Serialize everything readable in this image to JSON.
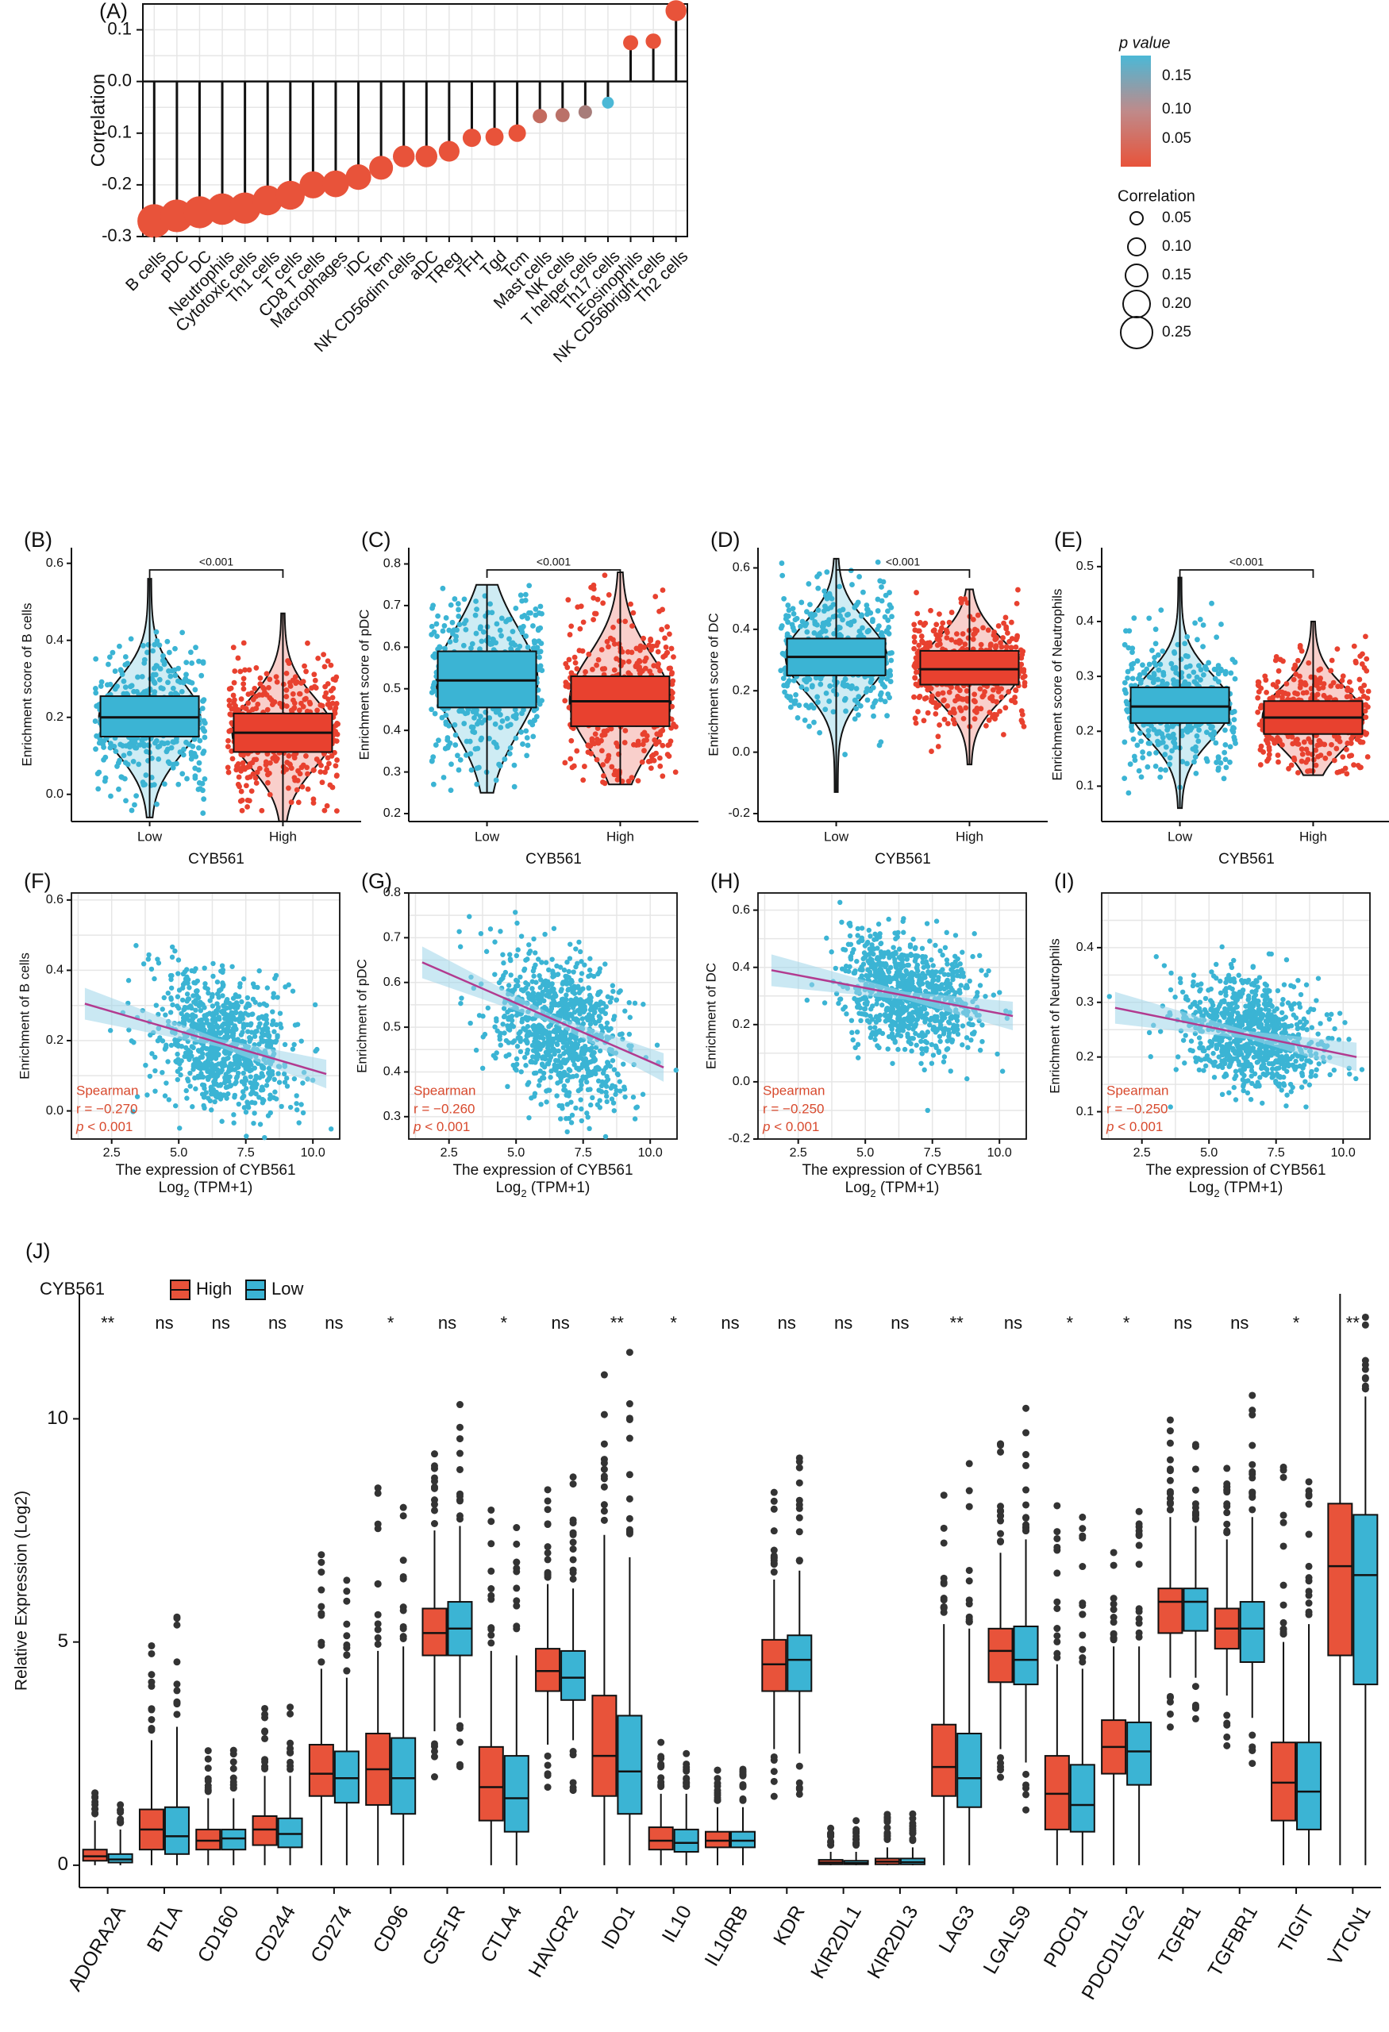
{
  "chart_data": [
    {
      "panel": "(A)",
      "type": "lollipop",
      "ylabel": "Correlation",
      "ylim": [
        -0.3,
        0.15
      ],
      "yticks": [
        "-0.3",
        "-0.2",
        "-0.1",
        "0.0",
        "0.1"
      ],
      "categories": [
        "B cells",
        "pDC",
        "DC",
        "Neutrophils",
        "Cytotoxic cells",
        "Th1 cells",
        "T cells",
        "CD8 T cells",
        "Macrophages",
        "iDC",
        "Tem",
        "NK CD56dim cells",
        "aDC",
        "TReg",
        "TFH",
        "Tgd",
        "Tcm",
        "Mast cells",
        "NK cells",
        "T helper cells",
        "Th17 cells",
        "Eosinophils",
        "NK CD56bright cells",
        "Th2 cells"
      ],
      "values": [
        -0.27,
        -0.26,
        -0.253,
        -0.247,
        -0.245,
        -0.23,
        -0.22,
        -0.2,
        -0.198,
        -0.185,
        -0.167,
        -0.145,
        -0.145,
        -0.135,
        -0.109,
        -0.107,
        -0.1,
        -0.067,
        -0.065,
        -0.059,
        -0.041,
        0.075,
        0.078,
        0.137
      ],
      "p_values": [
        0.001,
        0.001,
        0.001,
        0.001,
        0.001,
        0.001,
        0.001,
        0.001,
        0.001,
        0.001,
        0.001,
        0.001,
        0.001,
        0.001,
        0.005,
        0.005,
        0.01,
        0.05,
        0.06,
        0.08,
        0.18,
        0.01,
        0.01,
        0.001
      ],
      "legend_p": {
        "title": "p value",
        "ticks": [
          "0.15",
          "0.10",
          "0.05"
        ],
        "low_color": "#E8533A",
        "high_color": "#4BB8D6"
      },
      "legend_size": {
        "title": "Correlation",
        "ticks": [
          "0.05",
          "0.10",
          "0.15",
          "0.20",
          "0.25"
        ]
      }
    },
    {
      "type": "violin-box",
      "xlabel": "CYB561",
      "groups": [
        "Low",
        "High"
      ],
      "colors": [
        "#3BB4D4",
        "#E8412F"
      ],
      "panels": [
        {
          "panel": "(B)",
          "ylabel": "Enrichment score of B cells",
          "ylim": [
            -0.05,
            0.62
          ],
          "yticks": [
            "0.0",
            "0.2",
            "0.4",
            "0.6"
          ],
          "low": {
            "min": -0.06,
            "q1": 0.15,
            "median": 0.2,
            "q3": 0.255,
            "max": 0.56
          },
          "high": {
            "min": -0.07,
            "q1": 0.11,
            "median": 0.16,
            "q3": 0.21,
            "max": 0.47
          },
          "sig": "<0.001"
        },
        {
          "panel": "(C)",
          "ylabel": "Enrichment score of pDC",
          "ylim": [
            0.2,
            0.82
          ],
          "yticks": [
            "0.2",
            "0.3",
            "0.4",
            "0.5",
            "0.6",
            "0.7",
            "0.8"
          ],
          "low": {
            "min": 0.25,
            "q1": 0.455,
            "median": 0.52,
            "q3": 0.59,
            "max": 0.75
          },
          "high": {
            "min": 0.27,
            "q1": 0.41,
            "median": 0.47,
            "q3": 0.53,
            "max": 0.78
          },
          "sig": "<0.001"
        },
        {
          "panel": "(D)",
          "ylabel": "Enrichment score of DC",
          "ylim": [
            -0.2,
            0.64
          ],
          "yticks": [
            "-0.2",
            "0.0",
            "0.2",
            "0.4",
            "0.6"
          ],
          "low": {
            "min": -0.13,
            "q1": 0.25,
            "median": 0.31,
            "q3": 0.37,
            "max": 0.63
          },
          "high": {
            "min": -0.04,
            "q1": 0.22,
            "median": 0.27,
            "q3": 0.33,
            "max": 0.53
          },
          "sig": "<0.001"
        },
        {
          "panel": "(E)",
          "ylabel": "Enrichment score of Neutrophils",
          "ylim": [
            0.05,
            0.52
          ],
          "yticks": [
            "0.1",
            "0.2",
            "0.3",
            "0.4",
            "0.5"
          ],
          "low": {
            "min": 0.06,
            "q1": 0.215,
            "median": 0.245,
            "q3": 0.28,
            "max": 0.48
          },
          "high": {
            "min": 0.12,
            "q1": 0.195,
            "median": 0.225,
            "q3": 0.255,
            "max": 0.4
          },
          "sig": "<0.001"
        }
      ]
    },
    {
      "type": "scatter",
      "xlabel": "The expression of CYB561",
      "xlabel2_base": "Log",
      "xlabel2_sub": "2",
      "xlabel2_rest": " (TPM+1)",
      "xlim": [
        1,
        11
      ],
      "xticks": [
        "2.5",
        "5.0",
        "7.5",
        "10.0"
      ],
      "method": "Spearman",
      "panels": [
        {
          "panel": "(F)",
          "ylabel": "Enrichment of B cells",
          "ylim": [
            -0.08,
            0.62
          ],
          "yticks": [
            "0.0",
            "0.2",
            "0.4",
            "0.6"
          ],
          "center": [
            6.6,
            0.19
          ],
          "spread": [
            1.3,
            0.1
          ],
          "line": [
            [
              1.5,
              0.305
            ],
            [
              10.5,
              0.105
            ]
          ],
          "r": "r = −0.270",
          "p": "< 0.001"
        },
        {
          "panel": "(G)",
          "ylabel": "Enrichment of pDC",
          "ylim": [
            0.25,
            0.8
          ],
          "yticks": [
            "0.3",
            "0.4",
            "0.5",
            "0.6",
            "0.7",
            "0.8"
          ],
          "center": [
            6.6,
            0.5
          ],
          "spread": [
            1.3,
            0.08
          ],
          "line": [
            [
              1.5,
              0.645
            ],
            [
              10.5,
              0.41
            ]
          ],
          "r": "r = −0.260",
          "p": "< 0.001"
        },
        {
          "panel": "(H)",
          "ylabel": "Enrichment of DC",
          "ylim": [
            -0.2,
            0.66
          ],
          "yticks": [
            "-0.2",
            "0.0",
            "0.2",
            "0.4",
            "0.6"
          ],
          "center": [
            6.6,
            0.31
          ],
          "spread": [
            1.3,
            0.1
          ],
          "line": [
            [
              1.5,
              0.39
            ],
            [
              10.5,
              0.23
            ]
          ],
          "r": "r = −0.250",
          "p": "< 0.001"
        },
        {
          "panel": "(I)",
          "ylabel": "Enrichment of Neutrophils",
          "ylim": [
            0.05,
            0.5
          ],
          "yticks": [
            "0.1",
            "0.2",
            "0.3",
            "0.4"
          ],
          "center": [
            6.6,
            0.24
          ],
          "spread": [
            1.3,
            0.05
          ],
          "line": [
            [
              1.5,
              0.29
            ],
            [
              10.5,
              0.2
            ]
          ],
          "r": "r = −0.250",
          "p": "< 0.001"
        }
      ]
    },
    {
      "panel": "(J)",
      "type": "box",
      "legend_title": "CYB561",
      "series": [
        "High",
        "Low"
      ],
      "colors": [
        "#E8533A",
        "#3BB4D4"
      ],
      "ylabel": "Relative Expression (Log2)",
      "ylim": [
        -0.5,
        12.8
      ],
      "yticks": [
        "0",
        "5",
        "10"
      ],
      "genes": [
        "ADORA2A",
        "BTLA",
        "CD160",
        "CD244",
        "CD274",
        "CD96",
        "CSF1R",
        "CTLA4",
        "HAVCR2",
        "IDO1",
        "IL10",
        "IL10RB",
        "KDR",
        "KIR2DL1",
        "KIR2DL3",
        "LAG3",
        "LGALS9",
        "PDCD1",
        "PDCD1LG2",
        "TGFB1",
        "TGFBR1",
        "TIGIT",
        "VTCN1"
      ],
      "significance": [
        "**",
        "ns",
        "ns",
        "ns",
        "ns",
        "*",
        "ns",
        "*",
        "ns",
        "**",
        "*",
        "ns",
        "ns",
        "ns",
        "ns",
        "**",
        "ns",
        "*",
        "*",
        "ns",
        "ns",
        "*",
        "**"
      ],
      "high": [
        [
          0,
          0.1,
          0.2,
          0.35,
          1.0
        ],
        [
          0,
          0.35,
          0.8,
          1.25,
          2.8
        ],
        [
          0,
          0.35,
          0.55,
          0.8,
          1.5
        ],
        [
          0,
          0.45,
          0.8,
          1.1,
          2.0
        ],
        [
          0,
          1.55,
          2.05,
          2.7,
          4.4
        ],
        [
          0,
          1.35,
          2.15,
          2.95,
          4.8
        ],
        [
          3.0,
          4.7,
          5.2,
          5.75,
          7.5
        ],
        [
          0,
          1.0,
          1.75,
          2.65,
          4.8
        ],
        [
          2.7,
          3.9,
          4.35,
          4.85,
          6.3
        ],
        [
          0,
          1.55,
          2.45,
          3.8,
          7.4
        ],
        [
          0,
          0.35,
          0.55,
          0.85,
          1.6
        ],
        [
          0,
          0.4,
          0.55,
          0.75,
          1.3
        ],
        [
          2.6,
          3.9,
          4.5,
          5.05,
          6.4
        ],
        [
          0,
          0.02,
          0.06,
          0.12,
          0.3
        ],
        [
          0,
          0.02,
          0.08,
          0.15,
          0.4
        ],
        [
          0,
          1.55,
          2.2,
          3.15,
          5.4
        ],
        [
          2.6,
          4.1,
          4.8,
          5.3,
          7.0
        ],
        [
          0,
          0.8,
          1.6,
          2.45,
          4.5
        ],
        [
          0,
          2.05,
          2.65,
          3.25,
          4.9
        ],
        [
          4.2,
          5.2,
          5.9,
          6.2,
          7.8
        ],
        [
          3.8,
          4.85,
          5.3,
          5.75,
          7.3
        ],
        [
          0,
          1.0,
          1.85,
          2.75,
          5.0
        ],
        [
          0,
          4.7,
          6.7,
          8.1,
          12.8
        ]
      ],
      "low": [
        [
          0,
          0.06,
          0.13,
          0.25,
          0.8
        ],
        [
          0,
          0.25,
          0.65,
          1.3,
          3.1
        ],
        [
          0,
          0.35,
          0.6,
          0.8,
          1.5
        ],
        [
          0,
          0.4,
          0.7,
          1.05,
          2.0
        ],
        [
          0,
          1.4,
          1.95,
          2.55,
          4.2
        ],
        [
          0,
          1.15,
          1.95,
          2.85,
          4.9
        ],
        [
          3.3,
          4.7,
          5.3,
          5.9,
          7.6
        ],
        [
          0,
          0.75,
          1.5,
          2.45,
          4.7
        ],
        [
          2.8,
          3.7,
          4.2,
          4.8,
          6.2
        ],
        [
          0,
          1.15,
          2.1,
          3.35,
          6.9
        ],
        [
          0,
          0.3,
          0.5,
          0.8,
          1.6
        ],
        [
          0,
          0.4,
          0.55,
          0.75,
          1.3
        ],
        [
          2.5,
          3.9,
          4.6,
          5.15,
          6.6
        ],
        [
          0,
          0.02,
          0.05,
          0.1,
          0.3
        ],
        [
          0,
          0.02,
          0.07,
          0.15,
          0.4
        ],
        [
          0,
          1.3,
          1.95,
          2.95,
          5.3
        ],
        [
          2.3,
          4.05,
          4.6,
          5.35,
          7.3
        ],
        [
          0,
          0.75,
          1.35,
          2.25,
          4.4
        ],
        [
          0,
          1.8,
          2.55,
          3.2,
          4.9
        ],
        [
          4.2,
          5.25,
          5.9,
          6.2,
          7.6
        ],
        [
          3.3,
          4.55,
          5.3,
          5.9,
          7.8
        ],
        [
          0,
          0.8,
          1.65,
          2.75,
          5.4
        ],
        [
          0,
          4.05,
          6.5,
          7.85,
          10.5
        ]
      ]
    }
  ]
}
